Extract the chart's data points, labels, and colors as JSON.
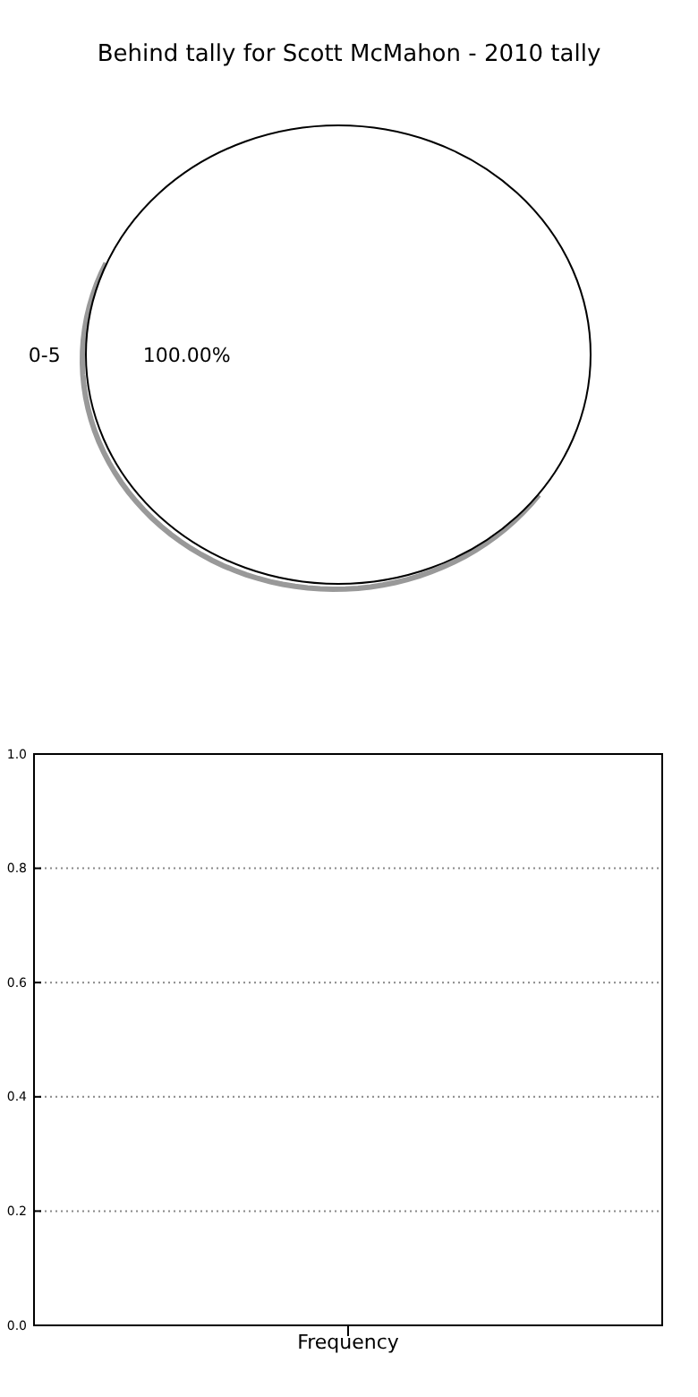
{
  "chart_data": [
    {
      "type": "pie",
      "title": "Behind tally for Scott McMahon - 2010 tally",
      "categories": [
        "0-5"
      ],
      "values": [
        100
      ],
      "colors": [
        "#ffffff"
      ],
      "value_labels": [
        "100.00%"
      ]
    },
    {
      "type": "bar",
      "categories": [
        null
      ],
      "values": [
        0
      ],
      "xlabel": "Frequency",
      "ylim": [
        0,
        1
      ],
      "yticks": [
        {
          "value": 0,
          "label": "0.0"
        },
        {
          "value": 0.2,
          "label": "0.2"
        },
        {
          "value": 0.4,
          "label": "0.4"
        },
        {
          "value": 0.6,
          "label": "0.6"
        },
        {
          "value": 0.8,
          "label": "0.8"
        },
        {
          "value": 1,
          "label": "1.0"
        }
      ],
      "grid": "y"
    }
  ]
}
